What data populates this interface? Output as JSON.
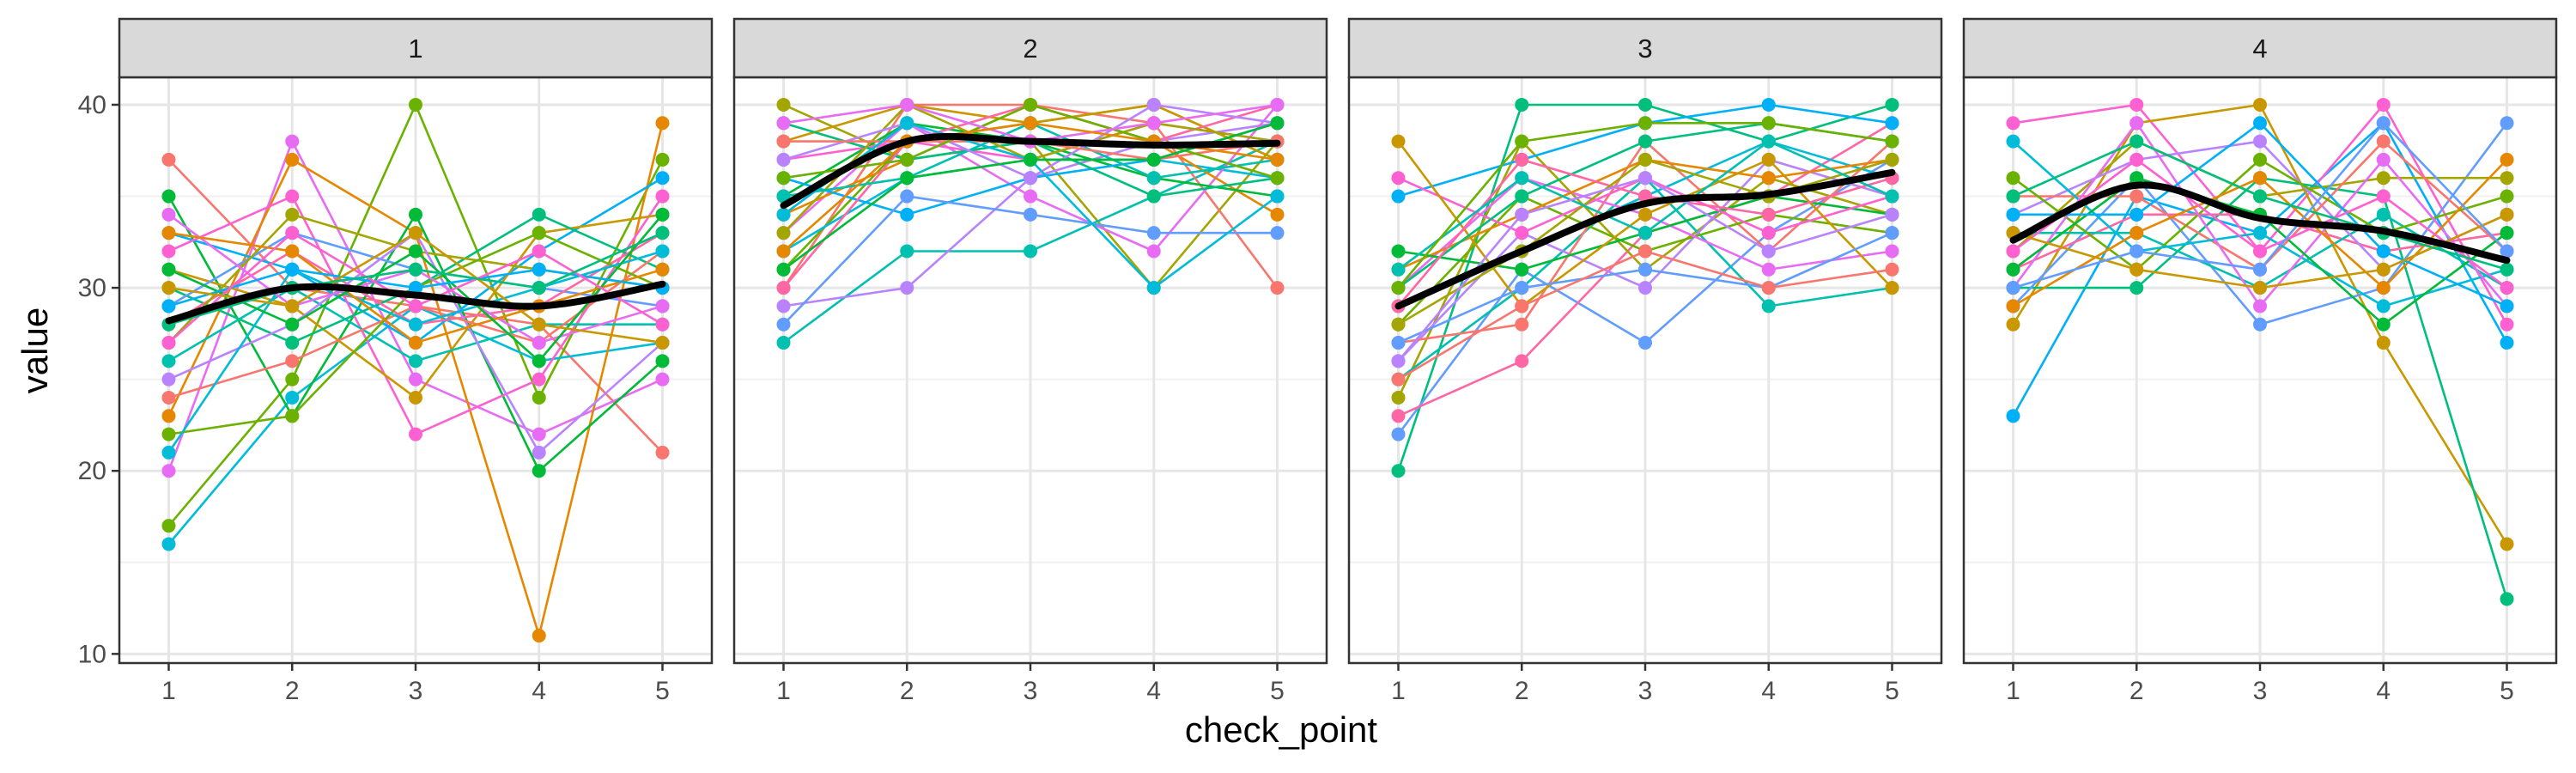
{
  "chart_data": {
    "type": "line",
    "facet_var": "",
    "xlabel": "check_point",
    "ylabel": "value",
    "x_ticks": [
      "1",
      "2",
      "3",
      "4",
      "5"
    ],
    "y_ticks": [
      10,
      20,
      30,
      40
    ],
    "xlim": [
      0.6,
      5.4
    ],
    "ylim": [
      9.5,
      41.5
    ],
    "grid": true,
    "legend": "none",
    "palette": [
      "#F8766D",
      "#E58700",
      "#C99800",
      "#A3A500",
      "#6BB100",
      "#00BA38",
      "#00BF7D",
      "#00C0AF",
      "#00BCD8",
      "#00B0F6",
      "#619CFF",
      "#B983FF",
      "#E76BF3",
      "#FD61D1",
      "#FF67A4"
    ],
    "smooth_color": "#000000",
    "panels": [
      {
        "label": "1",
        "smooth": [
          28.2,
          30.0,
          29.6,
          29.0,
          30.2
        ],
        "series": [
          [
            37,
            30,
            29,
            28,
            21
          ],
          [
            17,
            25,
            40,
            24,
            37
          ],
          [
            16,
            24,
            29,
            26,
            27
          ],
          [
            20,
            38,
            25,
            22,
            25
          ],
          [
            23,
            37,
            33,
            11,
            39
          ],
          [
            35,
            23,
            34,
            20,
            26
          ],
          [
            33,
            31,
            27,
            32,
            36
          ],
          [
            32,
            35,
            22,
            25,
            35
          ],
          [
            31,
            29,
            24,
            33,
            34
          ],
          [
            30,
            27,
            30,
            34,
            31
          ],
          [
            29,
            33,
            31,
            30,
            29
          ],
          [
            28,
            32,
            28,
            29,
            33
          ],
          [
            27,
            34,
            32,
            31,
            30
          ],
          [
            26,
            30,
            26,
            28,
            28
          ],
          [
            25,
            28,
            33,
            21,
            27
          ],
          [
            24,
            26,
            29,
            27,
            32
          ],
          [
            22,
            23,
            30,
            33,
            30
          ],
          [
            21,
            31,
            28,
            30,
            32
          ],
          [
            34,
            29,
            31,
            27,
            29
          ],
          [
            33,
            32,
            27,
            29,
            31
          ],
          [
            31,
            28,
            32,
            26,
            34
          ],
          [
            29,
            31,
            30,
            31,
            30
          ],
          [
            27,
            33,
            29,
            32,
            28
          ],
          [
            30,
            29,
            33,
            28,
            27
          ],
          [
            28,
            30,
            31,
            30,
            33
          ]
        ]
      },
      {
        "label": "2",
        "smooth": [
          34.5,
          38.0,
          38.0,
          37.8,
          37.9
        ],
        "series": [
          [
            40,
            37,
            38,
            30,
            38
          ],
          [
            27,
            32,
            32,
            35,
            38
          ],
          [
            29,
            30,
            36,
            38,
            39
          ],
          [
            30,
            40,
            40,
            39,
            30
          ],
          [
            31,
            38,
            39,
            40,
            37
          ],
          [
            32,
            36,
            37,
            37,
            36
          ],
          [
            33,
            39,
            35,
            32,
            40
          ],
          [
            34,
            37,
            40,
            38,
            34
          ],
          [
            35,
            39,
            38,
            36,
            35
          ],
          [
            36,
            34,
            36,
            37,
            39
          ],
          [
            37,
            38,
            37,
            39,
            38
          ],
          [
            38,
            40,
            39,
            40,
            37
          ],
          [
            39,
            37,
            38,
            35,
            36
          ],
          [
            28,
            35,
            34,
            33,
            33
          ],
          [
            30,
            38,
            40,
            38,
            40
          ],
          [
            33,
            40,
            37,
            39,
            38
          ],
          [
            35,
            36,
            39,
            36,
            37
          ],
          [
            37,
            39,
            36,
            40,
            39
          ],
          [
            38,
            38,
            38,
            37,
            38
          ],
          [
            36,
            37,
            40,
            38,
            36
          ],
          [
            34,
            39,
            37,
            30,
            35
          ],
          [
            39,
            40,
            38,
            39,
            40
          ],
          [
            32,
            38,
            39,
            38,
            37
          ],
          [
            31,
            36,
            37,
            37,
            39
          ]
        ]
      },
      {
        "label": "3",
        "smooth": [
          29.0,
          32.0,
          34.6,
          35.1,
          36.3
        ],
        "series": [
          [
            20,
            40,
            40,
            38,
            40
          ],
          [
            22,
            31,
            27,
            33,
            37
          ],
          [
            23,
            26,
            33,
            35,
            39
          ],
          [
            24,
            38,
            31,
            36,
            34
          ],
          [
            25,
            30,
            36,
            29,
            30
          ],
          [
            26,
            33,
            30,
            37,
            35
          ],
          [
            27,
            28,
            38,
            32,
            38
          ],
          [
            28,
            35,
            32,
            34,
            33
          ],
          [
            29,
            32,
            35,
            38,
            36
          ],
          [
            30,
            36,
            34,
            31,
            32
          ],
          [
            31,
            34,
            37,
            36,
            37
          ],
          [
            32,
            31,
            33,
            35,
            34
          ],
          [
            35,
            37,
            39,
            40,
            39
          ],
          [
            36,
            33,
            36,
            33,
            35
          ],
          [
            38,
            29,
            34,
            37,
            30
          ],
          [
            30,
            35,
            38,
            39,
            38
          ],
          [
            27,
            30,
            31,
            30,
            33
          ],
          [
            29,
            37,
            35,
            34,
            36
          ],
          [
            28,
            32,
            37,
            35,
            37
          ],
          [
            31,
            36,
            33,
            38,
            35
          ],
          [
            26,
            34,
            36,
            32,
            34
          ],
          [
            25,
            29,
            32,
            30,
            31
          ],
          [
            30,
            38,
            39,
            39,
            38
          ]
        ]
      },
      {
        "label": "4",
        "smooth": [
          32.6,
          35.6,
          33.8,
          33.1,
          31.5
        ],
        "series": [
          [
            23,
            35,
            33,
            39,
            27
          ],
          [
            39,
            40,
            32,
            40,
            28
          ],
          [
            28,
            39,
            40,
            27,
            16
          ],
          [
            30,
            30,
            36,
            35,
            13
          ],
          [
            29,
            36,
            28,
            30,
            39
          ],
          [
            31,
            34,
            34,
            32,
            33
          ],
          [
            32,
            38,
            35,
            36,
            36
          ],
          [
            33,
            33,
            30,
            34,
            30
          ],
          [
            34,
            37,
            38,
            31,
            34
          ],
          [
            35,
            35,
            31,
            38,
            32
          ],
          [
            36,
            31,
            37,
            33,
            35
          ],
          [
            38,
            32,
            33,
            29,
            31
          ],
          [
            30,
            39,
            29,
            37,
            29
          ],
          [
            29,
            33,
            36,
            30,
            37
          ],
          [
            31,
            36,
            34,
            28,
            33
          ],
          [
            34,
            34,
            39,
            32,
            29
          ],
          [
            32,
            37,
            32,
            35,
            30
          ],
          [
            33,
            31,
            30,
            31,
            34
          ],
          [
            35,
            38,
            35,
            33,
            31
          ],
          [
            30,
            32,
            31,
            39,
            32
          ]
        ]
      }
    ]
  }
}
